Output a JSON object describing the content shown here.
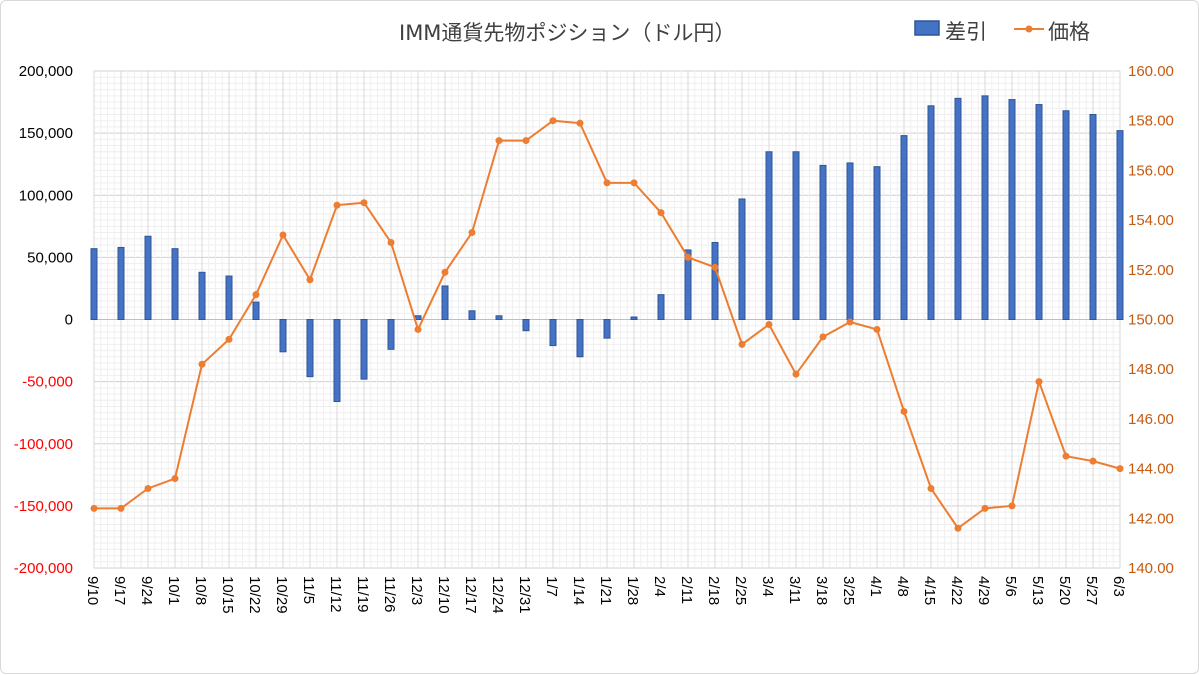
{
  "chart_data": {
    "type": "bar+line",
    "title": "IMM通貨先物ポジション（ドル円）",
    "legend": {
      "position": "top-right",
      "entries": [
        "差引",
        "価格"
      ]
    },
    "grid": true,
    "categories": [
      "9/10",
      "9/17",
      "9/24",
      "10/1",
      "10/8",
      "10/15",
      "10/22",
      "10/29",
      "11/5",
      "11/12",
      "11/19",
      "11/26",
      "12/3",
      "12/10",
      "12/17",
      "12/24",
      "12/31",
      "1/7",
      "1/14",
      "1/21",
      "1/28",
      "2/4",
      "2/11",
      "2/18",
      "2/25",
      "3/4",
      "3/11",
      "3/18",
      "3/25",
      "4/1",
      "4/8",
      "4/15",
      "4/22",
      "4/29",
      "5/6",
      "5/13",
      "5/20",
      "5/27",
      "6/3"
    ],
    "y_left": {
      "ylim": [
        -200000,
        200000
      ],
      "ticks": [
        "200,000",
        "150,000",
        "100,000",
        "50,000",
        "0",
        "-50,000",
        "-100,000",
        "-150,000",
        "-200,000"
      ],
      "tick_values": [
        200000,
        150000,
        100000,
        50000,
        0,
        -50000,
        -100000,
        -150000,
        -200000
      ],
      "positive_color": "#000000",
      "negative_color": "#ff0000"
    },
    "y_right": {
      "ylim": [
        140,
        160
      ],
      "ticks": [
        "160.00",
        "158.00",
        "156.00",
        "154.00",
        "152.00",
        "150.00",
        "148.00",
        "146.00",
        "144.00",
        "142.00",
        "140.00"
      ],
      "tick_values": [
        160,
        158,
        156,
        154,
        152,
        150,
        148,
        146,
        144,
        142,
        140
      ],
      "color": "#c55a11"
    },
    "series": [
      {
        "name": "差引",
        "type": "bar",
        "axis": "left",
        "color": "#4472c4",
        "values": [
          57000,
          58000,
          67000,
          57000,
          38000,
          35000,
          14000,
          -26000,
          -46000,
          -66000,
          -48000,
          -24000,
          3000,
          27000,
          7000,
          3000,
          -9000,
          -21000,
          -30000,
          -15000,
          2000,
          20000,
          56000,
          62000,
          97000,
          135000,
          135000,
          124000,
          126000,
          123000,
          148000,
          172000,
          178000,
          180000,
          177000,
          173000,
          168000,
          165000,
          152000
        ]
      },
      {
        "name": "価格",
        "type": "line",
        "axis": "right",
        "color": "#ed7d31",
        "values": [
          142.4,
          142.4,
          143.2,
          143.6,
          148.2,
          149.2,
          151.0,
          153.4,
          151.6,
          154.6,
          154.7,
          153.1,
          149.6,
          151.9,
          153.5,
          157.2,
          157.2,
          158.0,
          157.9,
          155.5,
          155.5,
          154.3,
          152.5,
          152.1,
          149.0,
          149.8,
          147.8,
          149.3,
          149.9,
          149.6,
          146.3,
          143.2,
          141.6,
          142.4,
          142.5,
          147.5,
          144.5,
          144.3,
          144.0
        ]
      }
    ]
  }
}
